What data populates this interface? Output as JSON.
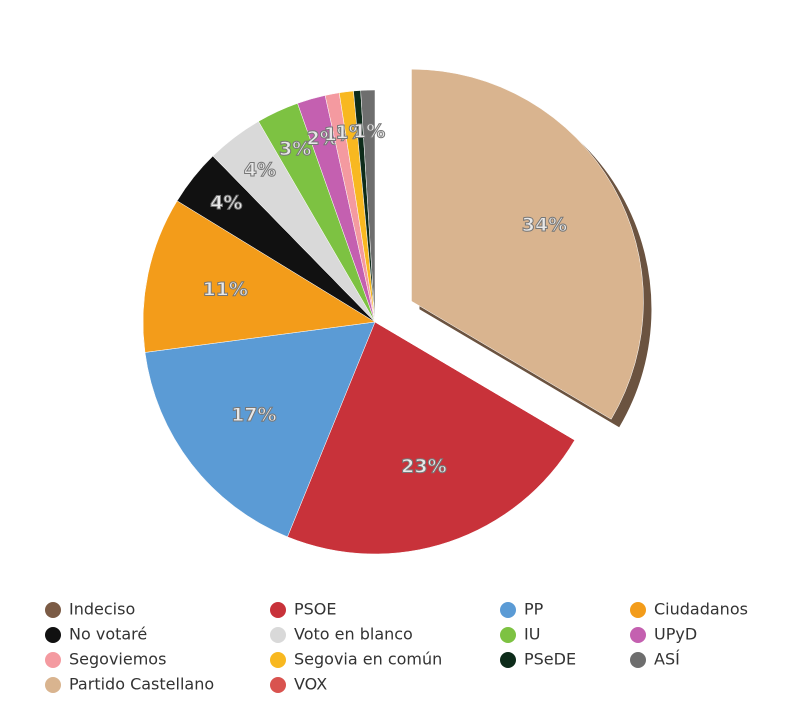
{
  "chart_data": {
    "type": "pie",
    "categories": [
      "Indeciso",
      "PSOE",
      "PP",
      "Ciudadanos",
      "No votaré",
      "Voto en blanco",
      "IU",
      "UPyD",
      "Segoviemos",
      "Segovia en común",
      "PSeDE",
      "ASÍ",
      "Partido Castellano",
      "VOX"
    ],
    "values": [
      0,
      23,
      17,
      11,
      4,
      4,
      3,
      2,
      1,
      1,
      0.5,
      1,
      34,
      0
    ],
    "value_labels": [
      null,
      "23%",
      "17%",
      "11%",
      "4%",
      "4%",
      "3%",
      "2%",
      "1%",
      "1%",
      null,
      "1%",
      "34%",
      null
    ],
    "colors": [
      "#7b5b45",
      "#c8323a",
      "#5b9bd5",
      "#f39c1a",
      "#111111",
      "#d9d9d9",
      "#7dc242",
      "#c460b0",
      "#f49aa0",
      "#f8b820",
      "#0d2b1a",
      "#6e6e6e",
      "#d9b48f",
      "#d9534f"
    ]
  }
}
